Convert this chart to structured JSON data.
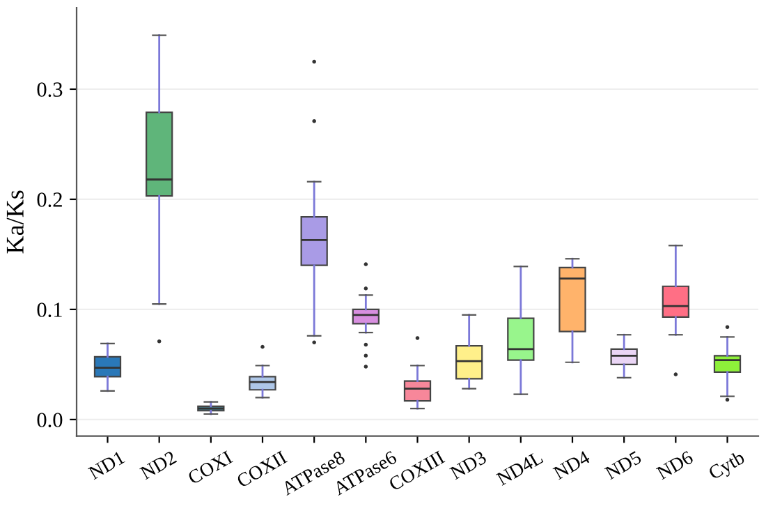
{
  "chart_data": {
    "type": "box",
    "ylabel": "Ka/Ks",
    "categories": [
      "ND1",
      "ND2",
      "COXI",
      "COXII",
      "ATPase8",
      "ATPase6",
      "COXIII",
      "ND3",
      "ND4L",
      "ND4",
      "ND5",
      "ND6",
      "Cytb"
    ],
    "colors": [
      "#2a78b8",
      "#5fb57a",
      "#4a7f8c",
      "#aec7e8",
      "#a99be6",
      "#d88fe0",
      "#f7879a",
      "#fff08a",
      "#98f58c",
      "#ffb36b",
      "#ead5f5",
      "#ff6f85",
      "#8ef03a"
    ],
    "boxes": [
      {
        "low": 0.026,
        "q1": 0.039,
        "median": 0.047,
        "q3": 0.057,
        "high": 0.069
      },
      {
        "low": 0.105,
        "q1": 0.203,
        "median": 0.218,
        "q3": 0.279,
        "high": 0.349,
        "outliers": [
          0.071
        ]
      },
      {
        "low": 0.005,
        "q1": 0.008,
        "median": 0.01,
        "q3": 0.012,
        "high": 0.016
      },
      {
        "low": 0.02,
        "q1": 0.027,
        "median": 0.034,
        "q3": 0.039,
        "high": 0.049,
        "outliers": [
          0.066
        ]
      },
      {
        "low": 0.076,
        "q1": 0.14,
        "median": 0.163,
        "q3": 0.184,
        "high": 0.216,
        "outliers": [
          0.325,
          0.271,
          0.07
        ]
      },
      {
        "low": 0.079,
        "q1": 0.087,
        "median": 0.095,
        "q3": 0.1,
        "high": 0.113,
        "outliers": [
          0.141,
          0.119,
          0.068,
          0.058,
          0.048
        ]
      },
      {
        "low": 0.01,
        "q1": 0.017,
        "median": 0.028,
        "q3": 0.035,
        "high": 0.049,
        "outliers": [
          0.074
        ]
      },
      {
        "low": 0.028,
        "q1": 0.037,
        "median": 0.053,
        "q3": 0.067,
        "high": 0.095
      },
      {
        "low": 0.023,
        "q1": 0.054,
        "median": 0.064,
        "q3": 0.092,
        "high": 0.139
      },
      {
        "low": 0.052,
        "q1": 0.08,
        "median": 0.128,
        "q3": 0.138,
        "high": 0.146
      },
      {
        "low": 0.038,
        "q1": 0.05,
        "median": 0.058,
        "q3": 0.064,
        "high": 0.077
      },
      {
        "low": 0.077,
        "q1": 0.093,
        "median": 0.103,
        "q3": 0.121,
        "high": 0.158,
        "outliers": [
          0.041
        ]
      },
      {
        "low": 0.021,
        "q1": 0.043,
        "median": 0.054,
        "q3": 0.058,
        "high": 0.075,
        "outliers": [
          0.084,
          0.018
        ]
      }
    ],
    "ylim": [
      -0.015,
      0.374
    ],
    "yticks": [
      {
        "value": 0,
        "label": "0.0"
      },
      0.1,
      0.2,
      0.3
    ],
    "grid": "y"
  }
}
